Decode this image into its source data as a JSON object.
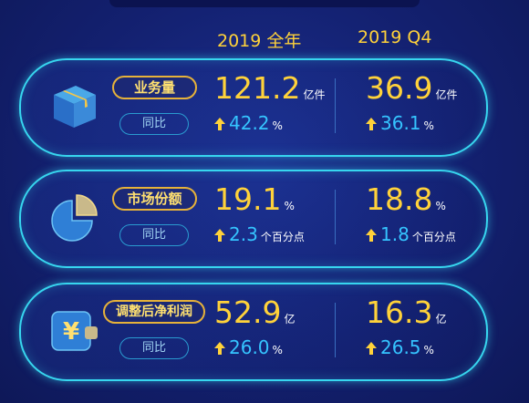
{
  "header": {
    "year_label": "2019 全年",
    "q4_label": "2019 Q4"
  },
  "rows": [
    {
      "label": "业务量",
      "yoy_label": "同比",
      "year": {
        "value": "121.2",
        "unit": "亿件",
        "growth": "42.2",
        "growth_unit": "%"
      },
      "q4": {
        "value": "36.9",
        "unit": "亿件",
        "growth": "36.1",
        "growth_unit": "%"
      },
      "icon": "box-icon"
    },
    {
      "label": "市场份额",
      "yoy_label": "同比",
      "year": {
        "value": "19.1",
        "unit": "%",
        "growth": "2.3",
        "growth_unit": "个百分点"
      },
      "q4": {
        "value": "18.8",
        "unit": "%",
        "growth": "1.8",
        "growth_unit": "个百分点"
      },
      "icon": "pie-chart-icon"
    },
    {
      "label": "调整后净利润",
      "yoy_label": "同比",
      "year": {
        "value": "52.9",
        "unit": "亿",
        "growth": "26.0",
        "growth_unit": "%"
      },
      "q4": {
        "value": "16.3",
        "unit": "亿",
        "growth": "26.5",
        "growth_unit": "%"
      },
      "icon": "wallet-yuan-icon"
    }
  ],
  "colors": {
    "accent_yellow": "#ffd23a",
    "accent_cyan": "#35c4ff",
    "border": "#37d6ef"
  }
}
